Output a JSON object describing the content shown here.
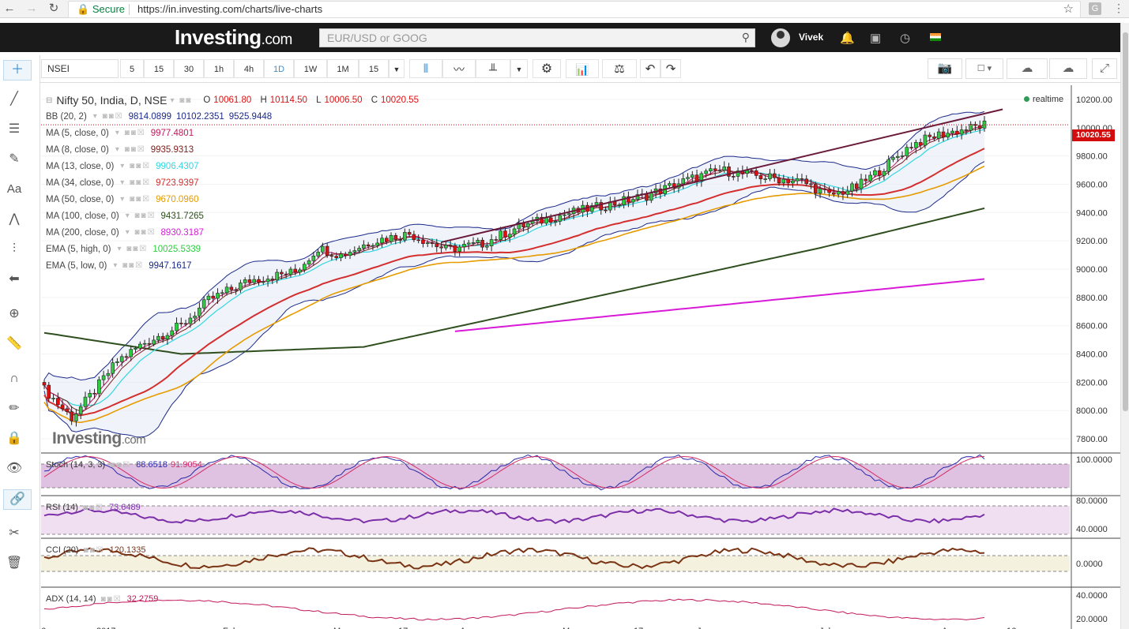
{
  "browser": {
    "secure_label": "Secure",
    "url": "https://in.investing.com/charts/live-charts",
    "g_badge": "G"
  },
  "header": {
    "logo_text": "Investing",
    "logo_suffix": ".com",
    "search_placeholder": "EUR/USD or GOOG",
    "username": "Vivek"
  },
  "toolbar": {
    "symbol": "NSEI",
    "intervals": [
      "5",
      "15",
      "30",
      "1h",
      "4h",
      "1D",
      "1W",
      "1M",
      "15"
    ],
    "active_interval": "1D"
  },
  "chart": {
    "title": "Nifty 50, India, D, NSE",
    "ohlc": {
      "O": "10061.80",
      "H": "10114.50",
      "L": "10006.50",
      "C": "10020.55"
    },
    "status": "realtime",
    "last_price": "10020.55",
    "last_price_color": "#d30d0d",
    "watermark": "Investing",
    "watermark_suffix": ".com",
    "indicators": [
      {
        "name": "BB (20, 2)",
        "values": [
          "9814.0899",
          "10102.2351",
          "9525.9448"
        ],
        "color": "#1b2a8a"
      },
      {
        "name": "MA (5, close, 0)",
        "values": [
          "9977.4801"
        ],
        "color": "#c2185b"
      },
      {
        "name": "MA (8, close, 0)",
        "values": [
          "9935.9313"
        ],
        "color": "#7b1e1e"
      },
      {
        "name": "MA (13, close, 0)",
        "values": [
          "9906.4307"
        ],
        "color": "#33d6e0"
      },
      {
        "name": "MA (34, close, 0)",
        "values": [
          "9723.9397"
        ],
        "color": "#d32f2f"
      },
      {
        "name": "MA (50, close, 0)",
        "values": [
          "9670.0960"
        ],
        "color": "#e69b00"
      },
      {
        "name": "MA (100, close, 0)",
        "values": [
          "9431.7265"
        ],
        "color": "#2f4f1f"
      },
      {
        "name": "MA (200, close, 0)",
        "values": [
          "8930.3187"
        ],
        "color": "#d81bd8"
      },
      {
        "name": "EMA (5, high, 0)",
        "values": [
          "10025.5339"
        ],
        "color": "#2ecc40"
      },
      {
        "name": "EMA (5, low, 0)",
        "values": [
          "9947.1617"
        ],
        "color": "#1b2a8a"
      }
    ],
    "price_axis": [
      "10200.00",
      "10000.00",
      "9800.00",
      "9600.00",
      "9400.00",
      "9200.00",
      "9000.00",
      "8800.00",
      "8600.00",
      "8400.00",
      "8200.00",
      "8000.00",
      "7800.00"
    ],
    "time_axis": [
      "6",
      "2017",
      "Feb",
      "Mar",
      "17",
      "Apr",
      "May",
      "17",
      "Jun",
      "Jul",
      "Aug",
      "16"
    ],
    "panels": [
      {
        "name": "Stoch (14, 3, 3)",
        "values": [
          "88.6518",
          "91.9054"
        ],
        "colors": [
          "#2a2aa8",
          "#d12d6a"
        ],
        "axis": [
          "100.0000"
        ]
      },
      {
        "name": "RSI (14)",
        "values": [
          "73.6489"
        ],
        "colors": [
          "#7b2fa8"
        ],
        "axis": [
          "80.0000",
          "40.0000"
        ]
      },
      {
        "name": "CCI (20)",
        "values": [
          "120.1335"
        ],
        "colors": [
          "#7a3414"
        ],
        "axis": [
          "0.0000"
        ]
      },
      {
        "name": "ADX (14, 14)",
        "values": [
          "32.2759"
        ],
        "colors": [
          "#c1175a"
        ],
        "axis": [
          "40.0000",
          "20.0000"
        ]
      }
    ]
  },
  "chart_data": {
    "type": "candlestick",
    "title": "Nifty 50, India, D, NSE",
    "ylim": [
      7700,
      10300
    ],
    "y_ticks": [
      7800,
      8000,
      8200,
      8400,
      8600,
      8800,
      9000,
      9200,
      9400,
      9600,
      9800,
      10000,
      10200
    ],
    "last_close": 10020.55,
    "close_path": [
      [
        0,
        8150
      ],
      [
        6,
        7950
      ],
      [
        10,
        8100
      ],
      [
        16,
        8350
      ],
      [
        22,
        8480
      ],
      [
        30,
        8600
      ],
      [
        36,
        8780
      ],
      [
        45,
        8920
      ],
      [
        55,
        8980
      ],
      [
        60,
        9150
      ],
      [
        65,
        9100
      ],
      [
        72,
        9200
      ],
      [
        80,
        9250
      ],
      [
        88,
        9140
      ],
      [
        96,
        9180
      ],
      [
        104,
        9300
      ],
      [
        113,
        9380
      ],
      [
        124,
        9460
      ],
      [
        132,
        9520
      ],
      [
        140,
        9620
      ],
      [
        148,
        9700
      ],
      [
        158,
        9650
      ],
      [
        166,
        9620
      ],
      [
        172,
        9520
      ],
      [
        178,
        9580
      ],
      [
        184,
        9720
      ],
      [
        190,
        9880
      ],
      [
        196,
        9950
      ],
      [
        202,
        9990
      ],
      [
        206,
        10020.55
      ]
    ],
    "ma200_path": [
      [
        90,
        8560
      ],
      [
        206,
        8930
      ]
    ],
    "ma100_path": [
      [
        0,
        8550
      ],
      [
        30,
        8400
      ],
      [
        70,
        8450
      ],
      [
        120,
        8800
      ],
      [
        170,
        9150
      ],
      [
        206,
        9430
      ]
    ],
    "trendline": [
      [
        87,
        9190
      ],
      [
        210,
        10130
      ]
    ],
    "stoch_range": [
      0,
      100
    ],
    "rsi_range": [
      20,
      100
    ],
    "adx_range": [
      10,
      50
    ]
  }
}
